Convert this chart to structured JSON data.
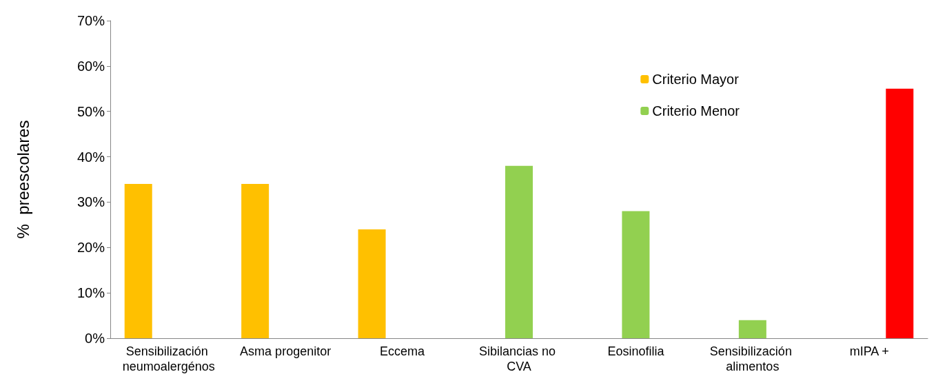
{
  "chart_data": {
    "type": "bar",
    "ylabel": "%  preescolares",
    "categories": [
      "Sensibilización neumoalergénos",
      "Asma progenitor",
      "Eccema",
      "Sibilancias no CVA",
      "Eosinofilia",
      "Sensibilización alimentos",
      "mIPA +"
    ],
    "series": [
      {
        "name": "Criterio Mayor",
        "color": "#ffc000",
        "values": [
          34,
          34,
          24,
          null,
          null,
          null,
          null
        ]
      },
      {
        "name": "Criterio Menor",
        "color": "#92d050",
        "values": [
          null,
          null,
          null,
          38,
          28,
          4,
          null
        ]
      },
      {
        "color": "#ff0000",
        "values": [
          null,
          null,
          null,
          null,
          null,
          null,
          55
        ]
      }
    ],
    "ylim": [
      0,
      70
    ],
    "yticks": [
      {
        "value": 0,
        "label": "0%"
      },
      {
        "value": 10,
        "label": "10%"
      },
      {
        "value": 20,
        "label": "20%"
      },
      {
        "value": 30,
        "label": "30%"
      },
      {
        "value": 40,
        "label": "40%"
      },
      {
        "value": 50,
        "label": "50%"
      },
      {
        "value": 60,
        "label": "60%"
      },
      {
        "value": 70,
        "label": "70%"
      }
    ],
    "grid": false,
    "legend": "top right"
  }
}
